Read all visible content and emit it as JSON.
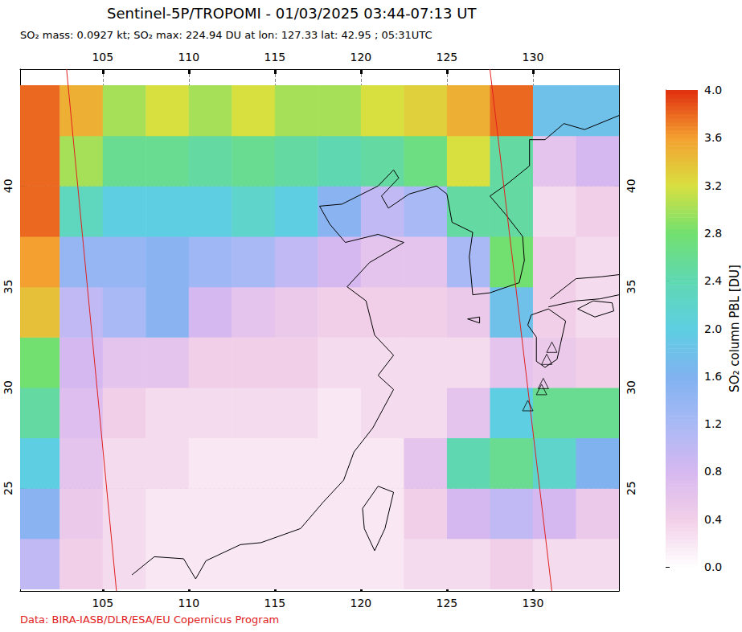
{
  "chart_data": {
    "type": "map",
    "title": "Sentinel-5P/TROPOMI - 01/03/2025 03:44-07:13 UT",
    "subtitle": "SO₂ mass: 0.0927 kt; SO₂ max: 224.94 DU at lon: 127.33 lat: 42.95 ; 05:31UTC",
    "credit": "Data: BIRA-IASB/DLR/ESA/EU Copernicus Program",
    "xlim": [
      100.2,
      135
    ],
    "ylim": [
      19.9,
      45.8
    ],
    "xticks": [
      105,
      110,
      115,
      120,
      125,
      130
    ],
    "yticks": [
      25,
      30,
      35,
      40
    ],
    "grid": true,
    "colorbar": {
      "label": "SO₂ column PBL [DU]",
      "range": [
        0,
        4
      ],
      "ticks": [
        {
          "value": 0,
          "label": "0.0"
        },
        {
          "value": 0.4,
          "label": "0.4"
        },
        {
          "value": 0.8,
          "label": "0.8"
        },
        {
          "value": 1.2,
          "label": "1.2"
        },
        {
          "value": 1.6,
          "label": "1.6"
        },
        {
          "value": 2.0,
          "label": "2.0"
        },
        {
          "value": 2.4,
          "label": "2.4"
        },
        {
          "value": 2.8,
          "label": "2.8"
        },
        {
          "value": 3.2,
          "label": "3.2"
        },
        {
          "value": 3.6,
          "label": "3.6"
        },
        {
          "value": 4.0,
          "label": "4.0"
        }
      ]
    },
    "so2": {
      "lon": [
        101.25,
        103.75,
        106.25,
        108.75,
        111.25,
        113.75,
        116.25,
        118.75,
        121.25,
        123.75,
        126.25,
        128.75,
        131.25,
        133.75
      ],
      "lat": [
        21.25,
        23.75,
        26.25,
        28.75,
        31.25,
        33.75,
        36.25,
        38.75,
        41.25,
        43.75
      ],
      "cells": [
        [
          1.0,
          0.4,
          0.3,
          0.2,
          0.2,
          0.2,
          0.2,
          0.2,
          0.2,
          0.3,
          0.3,
          0.4,
          0.3,
          0.3
        ],
        [
          1.5,
          0.5,
          0.3,
          0.2,
          0.2,
          0.2,
          0.2,
          0.2,
          0.2,
          0.4,
          0.8,
          1.0,
          0.8,
          0.5
        ],
        [
          2.0,
          0.6,
          0.3,
          0.3,
          0.2,
          0.2,
          0.2,
          0.2,
          0.2,
          0.6,
          2.4,
          2.6,
          2.2,
          1.6
        ],
        [
          2.5,
          0.7,
          0.4,
          0.3,
          0.3,
          0.3,
          0.3,
          0.2,
          0.3,
          0.3,
          0.6,
          2.0,
          2.6,
          2.6
        ],
        [
          2.8,
          0.8,
          0.6,
          0.6,
          0.4,
          0.4,
          0.4,
          0.3,
          0.3,
          0.3,
          0.3,
          0.6,
          0.5,
          0.4
        ],
        [
          3.4,
          1.0,
          1.2,
          1.5,
          0.8,
          0.6,
          0.5,
          0.4,
          0.4,
          0.4,
          0.5,
          1.8,
          0.4,
          0.3
        ],
        [
          3.6,
          1.4,
          1.4,
          1.5,
          1.3,
          1.2,
          1.0,
          0.8,
          0.6,
          0.6,
          1.2,
          2.8,
          0.4,
          0.3
        ],
        [
          3.8,
          2.3,
          2.0,
          2.0,
          2.0,
          2.2,
          2.0,
          1.5,
          1.0,
          1.2,
          2.5,
          2.5,
          0.3,
          0.4
        ],
        [
          3.8,
          3.0,
          2.6,
          2.6,
          2.5,
          2.6,
          2.5,
          2.4,
          2.5,
          2.7,
          3.2,
          2.5,
          0.6,
          0.8
        ],
        [
          3.8,
          3.5,
          3.0,
          3.2,
          3.0,
          3.2,
          3.0,
          3.0,
          3.2,
          3.3,
          3.5,
          3.8,
          1.8,
          1.8
        ]
      ]
    },
    "swath_edges": [
      [
        [
          102.9,
          45.8
        ],
        [
          105.8,
          19.9
        ]
      ],
      [
        [
          127.5,
          45.8
        ],
        [
          131.1,
          19.9
        ]
      ]
    ],
    "volcanoes": [
      [
        131.1,
        32.0
      ],
      [
        130.8,
        31.4
      ],
      [
        130.6,
        30.2
      ],
      [
        130.5,
        29.9
      ],
      [
        129.7,
        29.1
      ]
    ],
    "coastlines": [
      [
        [
          106.7,
          20.7
        ],
        [
          108.0,
          21.6
        ],
        [
          109.7,
          21.5
        ],
        [
          110.4,
          20.5
        ],
        [
          111.0,
          21.4
        ],
        [
          113.0,
          22.2
        ],
        [
          114.2,
          22.3
        ],
        [
          116.5,
          23.0
        ],
        [
          117.8,
          24.3
        ],
        [
          119.0,
          25.4
        ],
        [
          119.6,
          26.8
        ],
        [
          120.7,
          28.0
        ],
        [
          121.9,
          29.9
        ],
        [
          121.0,
          30.6
        ],
        [
          121.9,
          31.6
        ],
        [
          120.8,
          32.6
        ],
        [
          120.3,
          34.3
        ],
        [
          119.2,
          35.0
        ],
        [
          120.5,
          36.2
        ],
        [
          122.5,
          37.2
        ],
        [
          121.0,
          37.6
        ],
        [
          119.1,
          37.2
        ],
        [
          118.2,
          38.1
        ],
        [
          117.6,
          39.0
        ],
        [
          118.9,
          39.1
        ],
        [
          121.0,
          40.0
        ],
        [
          121.9,
          40.8
        ],
        [
          122.2,
          40.4
        ],
        [
          121.2,
          39.5
        ],
        [
          121.6,
          38.9
        ],
        [
          122.8,
          39.6
        ],
        [
          124.4,
          40.0
        ],
        [
          125.0,
          39.6
        ],
        [
          125.3,
          38.2
        ],
        [
          126.5,
          37.7
        ],
        [
          126.3,
          36.5
        ],
        [
          126.5,
          34.6
        ],
        [
          127.5,
          34.7
        ],
        [
          129.2,
          35.2
        ],
        [
          129.5,
          36.3
        ],
        [
          129.4,
          37.5
        ],
        [
          128.4,
          38.6
        ],
        [
          127.5,
          39.5
        ],
        [
          128.5,
          40.1
        ],
        [
          129.8,
          41.0
        ],
        [
          129.8,
          42.3
        ],
        [
          130.7,
          42.3
        ],
        [
          131.8,
          43.1
        ],
        [
          133.0,
          42.8
        ],
        [
          135.0,
          43.5
        ]
      ],
      [
        [
          121.0,
          25.1
        ],
        [
          121.9,
          24.8
        ],
        [
          121.4,
          23.0
        ],
        [
          120.8,
          21.9
        ],
        [
          120.2,
          23.0
        ],
        [
          120.1,
          24.0
        ],
        [
          121.0,
          25.1
        ]
      ],
      [
        [
          130.9,
          33.9
        ],
        [
          131.9,
          33.3
        ],
        [
          131.4,
          31.4
        ],
        [
          130.7,
          31.0
        ],
        [
          130.2,
          31.3
        ],
        [
          130.2,
          32.5
        ],
        [
          129.7,
          33.1
        ],
        [
          129.9,
          33.6
        ],
        [
          130.9,
          33.9
        ]
      ],
      [
        [
          130.9,
          34.0
        ],
        [
          132.5,
          34.3
        ],
        [
          133.9,
          34.4
        ],
        [
          135.0,
          34.6
        ]
      ],
      [
        [
          131.0,
          34.4
        ],
        [
          132.5,
          35.4
        ],
        [
          134.0,
          35.5
        ],
        [
          135.0,
          35.6
        ]
      ],
      [
        [
          132.6,
          33.9
        ],
        [
          133.6,
          33.5
        ],
        [
          134.7,
          33.8
        ],
        [
          134.6,
          34.2
        ],
        [
          133.5,
          34.3
        ],
        [
          132.6,
          33.9
        ]
      ],
      [
        [
          126.2,
          33.4
        ],
        [
          126.9,
          33.5
        ],
        [
          126.9,
          33.2
        ],
        [
          126.2,
          33.4
        ]
      ]
    ]
  }
}
